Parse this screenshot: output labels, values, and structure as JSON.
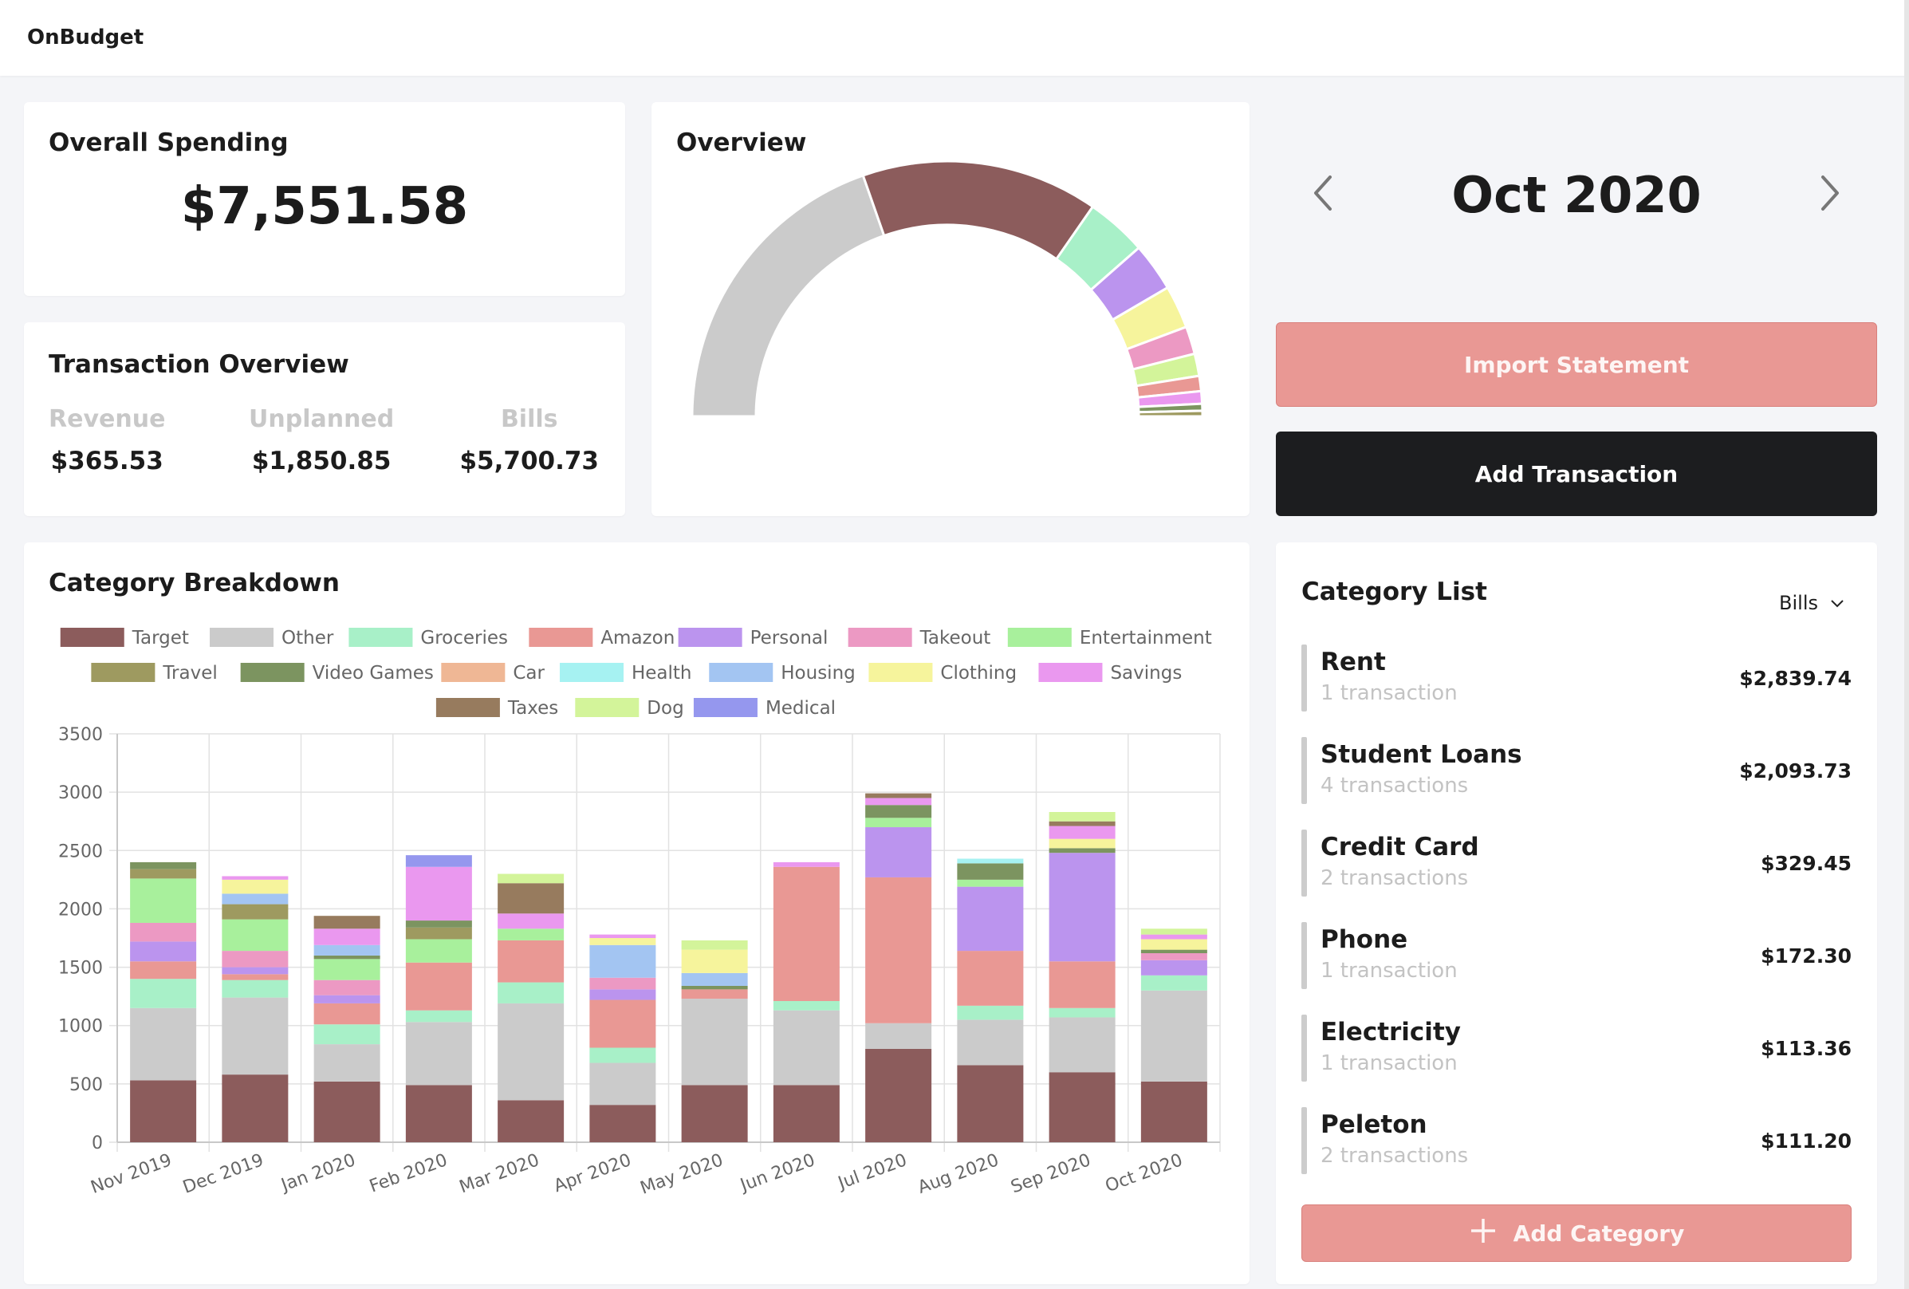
{
  "app": {
    "name": "OnBudget"
  },
  "overall_spending": {
    "title": "Overall Spending",
    "amount": "$7,551.58"
  },
  "transaction_overview": {
    "title": "Transaction Overview",
    "columns": [
      {
        "label": "Revenue",
        "value": "$365.53"
      },
      {
        "label": "Unplanned",
        "value": "$1,850.85"
      },
      {
        "label": "Bills",
        "value": "$5,700.73"
      }
    ]
  },
  "overview": {
    "title": "Overview"
  },
  "month_nav": {
    "label": "Oct 2020",
    "prev_icon": "chevron-left-icon",
    "next_icon": "chevron-right-icon"
  },
  "actions": {
    "import_label": "Import Statement",
    "add_transaction_label": "Add Transaction"
  },
  "category_list": {
    "title": "Category List",
    "filter_value": "Bills",
    "items": [
      {
        "name": "Rent",
        "count": "1 transaction",
        "amount": "$2,839.74"
      },
      {
        "name": "Student Loans",
        "count": "4 transactions",
        "amount": "$2,093.73"
      },
      {
        "name": "Credit Card",
        "count": "2 transactions",
        "amount": "$329.45"
      },
      {
        "name": "Phone",
        "count": "1 transaction",
        "amount": "$172.30"
      },
      {
        "name": "Electricity",
        "count": "1 transaction",
        "amount": "$113.36"
      },
      {
        "name": "Peleton",
        "count": "2 transactions",
        "amount": "$111.20"
      }
    ],
    "add_label": "Add Category"
  },
  "colors": {
    "Target": "#8c5c5c",
    "Other": "#cbcbcb",
    "Groceries": "#a8f0c8",
    "Amazon": "#e99894",
    "Personal": "#bb94ee",
    "Takeout": "#ec99c3",
    "Entertainment": "#a8f09c",
    "Travel": "#9e9a60",
    "Video Games": "#7c9460",
    "Car": "#efb795",
    "Health": "#a6f2f2",
    "Housing": "#a3c5f2",
    "Clothing": "#f6f49c",
    "Savings": "#ea98ef",
    "Taxes": "#977b5e",
    "Dog": "#d3f49a",
    "Medical": "#9597ee"
  },
  "chart_data": [
    {
      "type": "pie",
      "title": "",
      "variant": "half-donut",
      "categories": [
        "Other",
        "Target",
        "Groceries",
        "Personal",
        "Clothing",
        "Takeout",
        "Dog",
        "Amazon",
        "Savings",
        "Video Games",
        "Travel"
      ],
      "values": [
        1120,
        856,
        220,
        175,
        155,
        100,
        80,
        55,
        45,
        25,
        20
      ]
    },
    {
      "type": "bar",
      "stacked": true,
      "title": "Category Breakdown",
      "legend": "top",
      "grid": true,
      "ylim": [
        0,
        3500
      ],
      "yticks": [
        0,
        500,
        1000,
        1500,
        2000,
        2500,
        3000,
        3500
      ],
      "categories": [
        "Nov 2019",
        "Dec 2019",
        "Jan 2020",
        "Feb 2020",
        "Mar 2020",
        "Apr 2020",
        "May 2020",
        "Jun 2020",
        "Jul 2020",
        "Aug 2020",
        "Sep 2020",
        "Oct 2020"
      ],
      "series": [
        {
          "name": "Target",
          "values": [
            530,
            580,
            520,
            490,
            360,
            320,
            490,
            490,
            800,
            660,
            600,
            520
          ]
        },
        {
          "name": "Other",
          "values": [
            620,
            660,
            320,
            540,
            830,
            360,
            740,
            640,
            220,
            390,
            470,
            780
          ]
        },
        {
          "name": "Groceries",
          "values": [
            250,
            150,
            170,
            100,
            180,
            130,
            0,
            80,
            0,
            120,
            80,
            130
          ]
        },
        {
          "name": "Amazon",
          "values": [
            150,
            50,
            180,
            410,
            360,
            410,
            80,
            1150,
            1250,
            470,
            400,
            0
          ]
        },
        {
          "name": "Personal",
          "values": [
            170,
            60,
            70,
            0,
            0,
            90,
            0,
            0,
            430,
            550,
            930,
            130
          ]
        },
        {
          "name": "Takeout",
          "values": [
            160,
            140,
            130,
            0,
            0,
            100,
            0,
            0,
            0,
            0,
            0,
            60
          ]
        },
        {
          "name": "Entertainment",
          "values": [
            380,
            270,
            180,
            200,
            100,
            0,
            0,
            0,
            80,
            60,
            0,
            0
          ]
        },
        {
          "name": "Travel",
          "values": [
            80,
            130,
            0,
            100,
            0,
            0,
            0,
            0,
            0,
            0,
            0,
            0
          ]
        },
        {
          "name": "Video Games",
          "values": [
            60,
            0,
            30,
            60,
            0,
            0,
            30,
            0,
            110,
            140,
            40,
            30
          ]
        },
        {
          "name": "Car",
          "values": [
            0,
            0,
            0,
            0,
            0,
            0,
            0,
            0,
            0,
            0,
            0,
            0
          ]
        },
        {
          "name": "Health",
          "values": [
            0,
            0,
            0,
            0,
            0,
            0,
            0,
            0,
            0,
            40,
            0,
            0
          ]
        },
        {
          "name": "Housing",
          "values": [
            0,
            90,
            90,
            0,
            0,
            280,
            110,
            0,
            0,
            0,
            0,
            0
          ]
        },
        {
          "name": "Clothing",
          "values": [
            0,
            120,
            0,
            0,
            0,
            60,
            200,
            0,
            0,
            0,
            80,
            90
          ]
        },
        {
          "name": "Savings",
          "values": [
            0,
            30,
            140,
            460,
            130,
            30,
            0,
            40,
            60,
            0,
            110,
            40
          ]
        },
        {
          "name": "Taxes",
          "values": [
            0,
            0,
            110,
            0,
            260,
            0,
            0,
            0,
            40,
            0,
            40,
            0
          ]
        },
        {
          "name": "Dog",
          "values": [
            0,
            0,
            0,
            0,
            80,
            0,
            80,
            0,
            0,
            0,
            80,
            50
          ]
        },
        {
          "name": "Medical",
          "values": [
            0,
            0,
            0,
            100,
            0,
            0,
            0,
            0,
            0,
            0,
            0,
            0
          ]
        }
      ]
    }
  ]
}
